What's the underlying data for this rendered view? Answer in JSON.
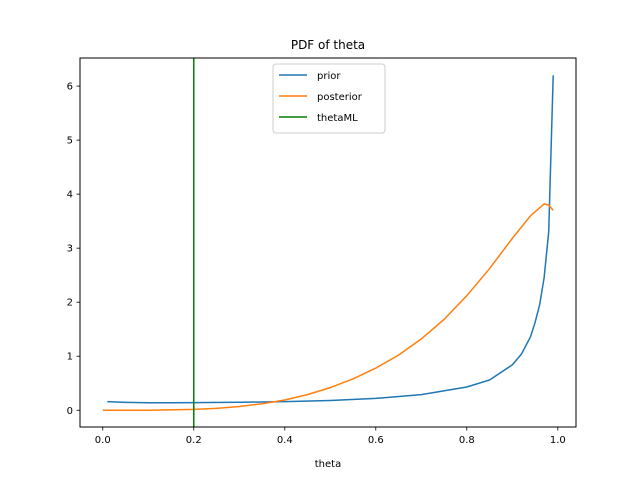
{
  "chart_data": {
    "type": "line",
    "title": "PDF of theta",
    "xlabel": "theta",
    "ylabel": "",
    "xlim": [
      -0.05,
      1.04
    ],
    "ylim": [
      -0.31,
      6.52
    ],
    "x_ticks": [
      "0.0",
      "0.2",
      "0.4",
      "0.6",
      "0.8",
      "1.0"
    ],
    "y_ticks": [
      "0",
      "1",
      "2",
      "3",
      "4",
      "5",
      "6"
    ],
    "grid": false,
    "legend_position": "upper center",
    "series": [
      {
        "name": "prior",
        "color": "#1f77b4",
        "x": [
          0.01,
          0.05,
          0.1,
          0.15,
          0.2,
          0.3,
          0.4,
          0.5,
          0.6,
          0.7,
          0.8,
          0.85,
          0.9,
          0.92,
          0.94,
          0.95,
          0.96,
          0.97,
          0.98,
          0.99
        ],
        "y": [
          0.16,
          0.145,
          0.14,
          0.14,
          0.142,
          0.148,
          0.16,
          0.18,
          0.22,
          0.29,
          0.43,
          0.56,
          0.84,
          1.04,
          1.36,
          1.62,
          1.95,
          2.45,
          3.3,
          6.2
        ]
      },
      {
        "name": "posterior",
        "color": "#ff7f0e",
        "x": [
          0.0,
          0.1,
          0.2,
          0.25,
          0.3,
          0.35,
          0.4,
          0.45,
          0.5,
          0.55,
          0.6,
          0.65,
          0.7,
          0.75,
          0.8,
          0.85,
          0.9,
          0.94,
          0.97,
          0.98,
          0.99
        ],
        "y": [
          0.0,
          0.001,
          0.015,
          0.035,
          0.07,
          0.12,
          0.19,
          0.29,
          0.42,
          0.58,
          0.78,
          1.02,
          1.32,
          1.68,
          2.12,
          2.62,
          3.18,
          3.6,
          3.82,
          3.8,
          3.7
        ]
      },
      {
        "name": "thetaML",
        "color": "#008000",
        "type": "vline",
        "x": 0.2
      }
    ]
  }
}
